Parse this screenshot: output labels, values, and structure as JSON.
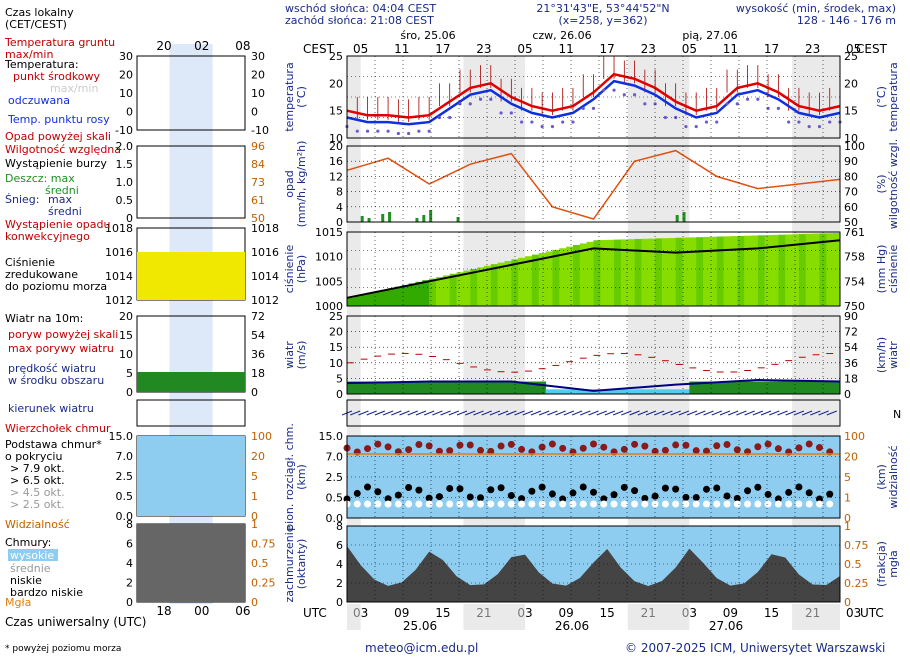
{
  "header": {
    "sunrise": "wschód słońca: 04:04 CEST",
    "sunset": "zachód słońca: 21:08 CEST",
    "coords": "21°31'43\"E, 53°44'52\"N",
    "grid": "(x=258, y=362)",
    "height_title": "wysokość (min, środek, max)",
    "heights": "128 - 146 - 176 m"
  },
  "time_axis": {
    "cest": "CEST",
    "utc": "UTC",
    "local_hours": [
      "05",
      "11",
      "17",
      "23",
      "05",
      "11",
      "17",
      "23",
      "05",
      "11",
      "17",
      "23",
      "05"
    ],
    "utc_hours": [
      "03",
      "09",
      "15",
      "21",
      "03",
      "09",
      "15",
      "21",
      "03",
      "09",
      "15",
      "21",
      "03"
    ],
    "day_labels_top": [
      "śro, 25.06",
      "czw, 26.06",
      "pią, 27.06"
    ],
    "day_labels_bottom": [
      "25.06",
      "26.06",
      "27.06"
    ]
  },
  "legend": {
    "local_time": "Czas lokalny\n(CET/CEST)",
    "local_ticks": [
      "20",
      "02",
      "08"
    ],
    "utc_time": "Czas uniwersalny (UTC)",
    "utc_ticks": [
      "18",
      "00",
      "06"
    ],
    "ground_temp": "Temperatura gruntu\nmax/min",
    "temperature": "Temperatura:",
    "center_point": "punkt środkowy",
    "max_min": "max/min",
    "perceived": "odczuwana",
    "dew_point": "Temp. punktu rosy",
    "rain_above": "Opad powyżej skali",
    "rel_humidity": "Wilgotność względna",
    "storm": "Wystąpienie burzy",
    "rain": "Deszcz: max",
    "rain_mid": "średni",
    "snow": "Śnieg:",
    "snow_max": "max",
    "snow_mid": "średni",
    "conv": "Wystąpienie opadu\nkonwekcyjnego",
    "pressure": "Ciśnienie\nzredukowane\ndo poziomu morza",
    "wind_title": "Wiatr na 10m:",
    "gust_above": "poryw powyżej skali",
    "max_gust": "max porywy wiatru",
    "wind_speed": "prędkość wiatru\nw środku obszaru",
    "wind_dir": "kierunek wiatru",
    "cloud_top": "Wierzchołek chmur",
    "cloud_base": "Podstawa chmur*\no pokryciu",
    "okt": [
      "> 7.9 okt.",
      "> 6.5 okt.",
      "> 4.5 okt.",
      "> 2.5 okt.",
      "> 0.1 okt."
    ],
    "visibility": "Widzialność",
    "clouds": "Chmury:",
    "high": "wysokie",
    "mid": "średnie",
    "low": "niskie",
    "very_low": "bardzo niskie",
    "fog": "Mgła",
    "footnote": "* powyżej poziomu morza"
  },
  "axes": {
    "temp_left": "temperatura\n(°C)",
    "temp_right": "(°C)\ntemperatura",
    "rain_left": "opad\n(mm/h, kg/m²h)",
    "rain_right": "(%)\nwilgotność wzgl.",
    "press_left": "ciśnienie\n(hPa)",
    "press_right": "(mm Hg)\nciśnienie",
    "wind_left": "wiatr\n(m/s)",
    "wind_right": "(km/h)\nwiatr",
    "cloudh_left": "pion. rozciągł. chm.\n(km)",
    "cloudh_right": "(km)\nwidzialność",
    "cover_left": "zachmurzenie\n(oktanty)",
    "cover_right": "(frakcja)\nmgła",
    "temp_ticks": [
      "25",
      "20",
      "15",
      "10"
    ],
    "rain_ticks": [
      "20",
      "16",
      "12",
      "8",
      "4",
      "0"
    ],
    "hum_ticks": [
      "100",
      "90",
      "80",
      "70",
      "60",
      "50"
    ],
    "press_ticks": [
      "1015",
      "1010",
      "1005",
      "1000"
    ],
    "mmhg_ticks": [
      "761",
      "758",
      "754",
      "750"
    ],
    "wind_ticks": [
      "25",
      "20",
      "15",
      "10",
      "5",
      "0"
    ],
    "kmh_ticks": [
      "90",
      "72",
      "54",
      "36",
      "18",
      "0"
    ],
    "cloudh_ticks": [
      "15.0",
      "7.0",
      "2.5",
      "0.5",
      "0.0"
    ],
    "vis_ticks": [
      "100",
      "20",
      "5",
      "1",
      "0"
    ],
    "cover_ticks": [
      "8",
      "6",
      "4",
      "2",
      "0"
    ],
    "fog_ticks": [
      "1",
      "0.75",
      "0.5",
      "0.25",
      "0"
    ],
    "leg_temp": [
      "30",
      "20",
      "10",
      "0",
      "-10"
    ],
    "leg_rain": [
      "2.0",
      "1.5",
      "1.0",
      "0.5",
      "0"
    ],
    "leg_hum": [
      "96",
      "84",
      "73",
      "61",
      "50"
    ],
    "leg_press": [
      "1018",
      "1016",
      "1014",
      "1012"
    ],
    "leg_wind": [
      "20",
      "15",
      "10",
      "5",
      "0"
    ],
    "leg_kmh": [
      "72",
      "54",
      "36",
      "18",
      "0"
    ],
    "leg_cloud": [
      "15.0",
      "7.0",
      "2.5",
      "0.5",
      "0.0"
    ],
    "leg_vis": [
      "100",
      "20",
      "5",
      "1",
      "0"
    ],
    "leg_cover": [
      "8",
      "6",
      "4",
      "2",
      "0"
    ],
    "leg_fog": [
      "1",
      "0.75",
      "0.5",
      "0.25",
      "0"
    ]
  },
  "chart_data": [
    {
      "type": "line",
      "title": "temperatura",
      "x": [
        0,
        3,
        6,
        9,
        12,
        15,
        18,
        21,
        24,
        27,
        30,
        33,
        36,
        39,
        42,
        45,
        48,
        51,
        54,
        57,
        60,
        63,
        66,
        69,
        72
      ],
      "series": [
        {
          "values": [
            14,
            13,
            13,
            12.5,
            13,
            16,
            19,
            20,
            17,
            15,
            14,
            15,
            18,
            22,
            21,
            19,
            16,
            14,
            15,
            19,
            20,
            18,
            15,
            14,
            15
          ]
        }
      ],
      "ylim": [
        8,
        26
      ]
    },
    {
      "type": "line",
      "title": "wilgotność wzgl.",
      "x": [
        0,
        6,
        12,
        18,
        24,
        30,
        36,
        42,
        48,
        54,
        60,
        66,
        72
      ],
      "series": [
        {
          "values": [
            84,
            92,
            75,
            88,
            95,
            60,
            52,
            90,
            97,
            80,
            72,
            75,
            78
          ]
        }
      ],
      "ylim": [
        50,
        100
      ]
    },
    {
      "type": "area",
      "title": "ciśnienie",
      "x": [
        0,
        12,
        24,
        36,
        48,
        60,
        72
      ],
      "series": [
        {
          "values": [
            1002,
            1006,
            1010,
            1014,
            1013,
            1014,
            1016
          ]
        }
      ],
      "ylim": [
        1000,
        1018
      ]
    },
    {
      "type": "area",
      "title": "wiatr",
      "x": [
        0,
        12,
        24,
        36,
        48,
        60,
        72
      ],
      "series": [
        {
          "values": [
            3.5,
            4,
            4,
            1,
            3,
            4.5,
            4
          ]
        }
      ],
      "ylim": [
        0,
        25
      ]
    }
  ],
  "footer": {
    "email": "meteo@icm.edu.pl",
    "copyright": "© 2007-2025 ICM, Uniwersytet Warszawski"
  }
}
